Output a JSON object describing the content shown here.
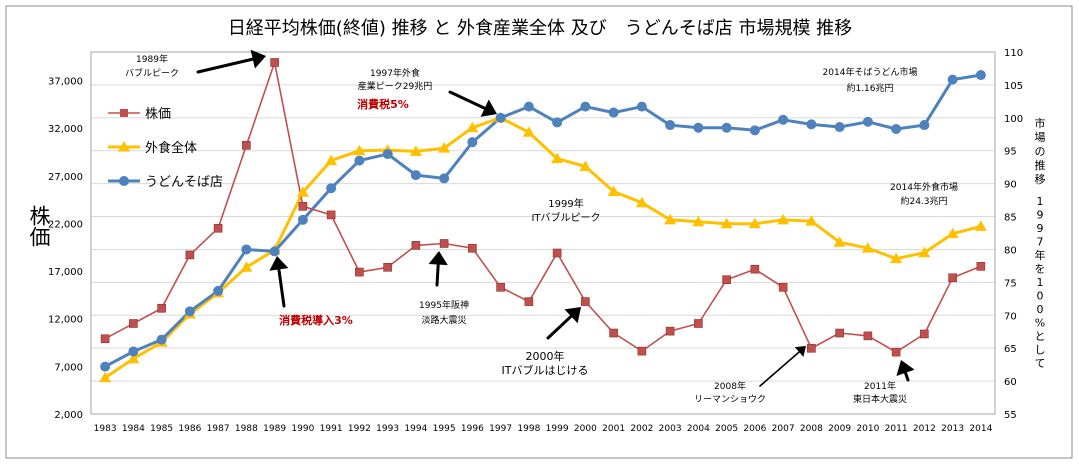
{
  "chart_data": {
    "type": "line",
    "title": "日経平均株価(終値) 推移 と 外食産業全体 及び　うどんそば店 市場規模 推移",
    "ylabel_left": "株価",
    "ylabel_right_a": "市場の推移",
    "ylabel_right_b": "1997年を100%として",
    "x": [
      "1983",
      "1984",
      "1985",
      "1986",
      "1987",
      "1988",
      "1989",
      "1990",
      "1991",
      "1992",
      "1993",
      "1994",
      "1995",
      "1996",
      "1997",
      "1998",
      "1999",
      "2000",
      "2001",
      "2002",
      "2003",
      "2004",
      "2005",
      "2006",
      "2007",
      "2008",
      "2009",
      "2010",
      "2011",
      "2012",
      "2013",
      "2014"
    ],
    "left_axis": {
      "min": 2000,
      "max": 40000,
      "ticks": [
        "2,000",
        "7,000",
        "12,000",
        "17,000",
        "22,000",
        "27,000",
        "32,000",
        "37,000"
      ],
      "tick_values": [
        2000,
        7000,
        12000,
        17000,
        22000,
        27000,
        32000,
        37000
      ]
    },
    "right_axis": {
      "min": 55,
      "max": 110,
      "ticks": [
        "55",
        "60",
        "65",
        "70",
        "75",
        "80",
        "85",
        "90",
        "95",
        "100",
        "105",
        "110"
      ],
      "tick_values": [
        55,
        60,
        65,
        70,
        75,
        80,
        85,
        90,
        95,
        100,
        105,
        110
      ]
    },
    "grid": true,
    "legend_position": "left",
    "series": [
      {
        "name": "株価",
        "axis": "left",
        "color": "#c0504d",
        "marker": "square",
        "values": [
          9900,
          11500,
          13100,
          18700,
          21500,
          30200,
          38900,
          23800,
          22900,
          16900,
          17400,
          19700,
          19900,
          19400,
          15300,
          13800,
          18900,
          13800,
          10500,
          8600,
          10700,
          11500,
          16100,
          17200,
          15300,
          8900,
          10500,
          10200,
          8500,
          10400,
          16300,
          17500
        ]
      },
      {
        "name": "外食全体",
        "axis": "right",
        "color": "#ffc000",
        "marker": "triangle",
        "values": [
          60.5,
          63.4,
          65.9,
          70.2,
          73.4,
          77.3,
          79.9,
          88.7,
          93.5,
          95.0,
          95.1,
          94.9,
          95.4,
          98.5,
          100,
          97.8,
          93.8,
          92.6,
          88.8,
          87.1,
          84.5,
          84.2,
          83.9,
          83.9,
          84.5,
          84.3,
          81.1,
          80.2,
          78.6,
          79.5,
          82.4,
          83.5
        ]
      },
      {
        "name": "うどんそば店",
        "axis": "right",
        "color": "#4f81bd",
        "marker": "circle",
        "values": [
          62.2,
          64.5,
          66.3,
          70.6,
          73.7,
          80.0,
          79.7,
          84.5,
          89.3,
          93.5,
          94.5,
          91.3,
          90.8,
          96.3,
          100,
          101.7,
          99.3,
          101.7,
          100.8,
          101.7,
          98.9,
          98.5,
          98.5,
          98.1,
          99.7,
          99.0,
          98.6,
          99.4,
          98.3,
          98.9,
          105.8,
          106.5
        ]
      }
    ],
    "annotations": [
      {
        "id": "ann-1989",
        "lines": [
          "1989年",
          "バブルピーク"
        ]
      },
      {
        "id": "ann-1997",
        "lines": [
          "1997年外食",
          "産業ピーク29兆円"
        ]
      },
      {
        "id": "ann-tax5",
        "lines": [
          "消費税5%"
        ]
      },
      {
        "id": "ann-1999",
        "lines": [
          "1999年",
          "ITバブルピーク"
        ]
      },
      {
        "id": "ann-2014soba",
        "lines": [
          "2014年そばうどん市場",
          "約1.16兆円"
        ]
      },
      {
        "id": "ann-2014gaishoku",
        "lines": [
          "2014年外食市場",
          "約24.3兆円"
        ]
      },
      {
        "id": "ann-tax3",
        "lines": [
          "消費税導入3%"
        ]
      },
      {
        "id": "ann-1995",
        "lines": [
          "1995年阪神",
          "淡路大震災"
        ]
      },
      {
        "id": "ann-2000",
        "lines": [
          "2000年",
          "ITバブルはじける"
        ]
      },
      {
        "id": "ann-2008",
        "lines": [
          "2008年",
          "リーマンショウク"
        ]
      },
      {
        "id": "ann-2011",
        "lines": [
          "2011年",
          "東日本大震災"
        ]
      }
    ]
  }
}
